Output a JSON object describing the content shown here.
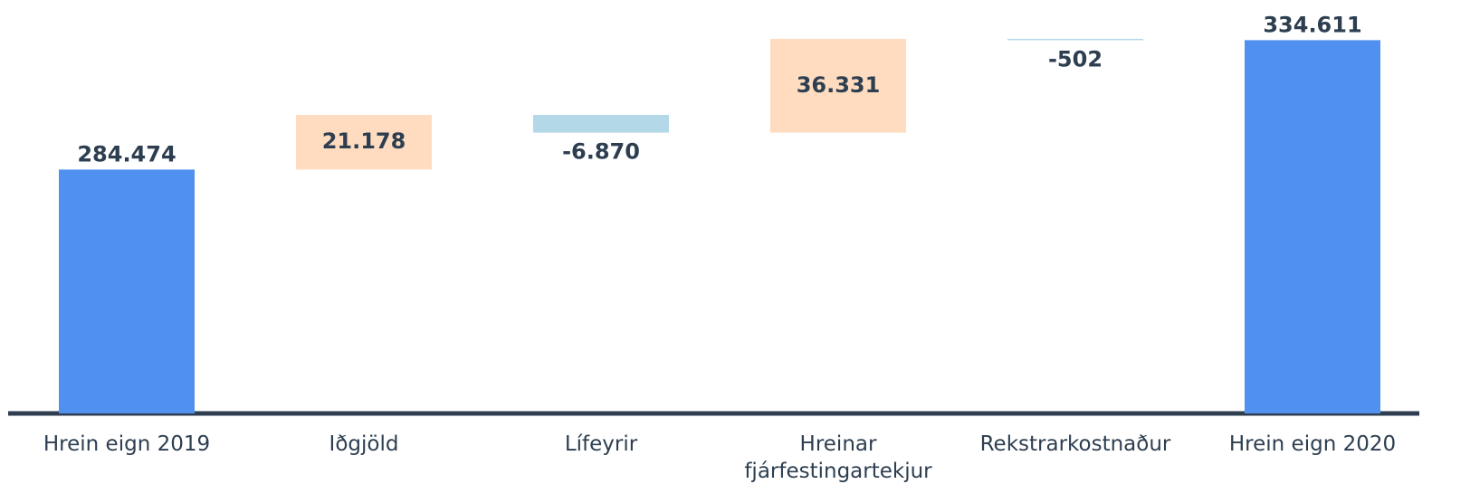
{
  "chart_data": {
    "type": "waterfall",
    "categories": [
      "Hrein eign 2019",
      "Iðgjöld",
      "Lífeyrir",
      "Hreinar fjárfestingartekjur",
      "Rekstrarkostnaður",
      "Hrein eign 2020"
    ],
    "values": [
      284474,
      21178,
      -6870,
      36331,
      -502,
      334611
    ],
    "value_labels": [
      "284.474",
      "21.178",
      "-6.870",
      "36.331",
      "-502",
      "334.611"
    ],
    "measure": [
      "absolute",
      "relative",
      "relative",
      "relative",
      "relative",
      "absolute"
    ],
    "colors": [
      "#5090ee",
      "#ffdcc0",
      "#b3d9e8",
      "#ffdcc0",
      "#b3d9e8",
      "#5090ee"
    ],
    "ylim": [
      190000,
      340000
    ]
  }
}
